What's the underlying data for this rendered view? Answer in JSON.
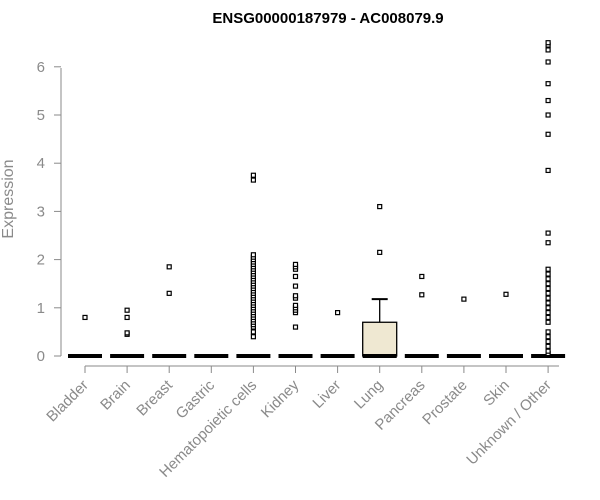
{
  "chart_data": {
    "type": "box",
    "title": "ENSG00000187979 - AC008079.9",
    "xlabel": "",
    "ylabel": "Expression",
    "ylim": [
      0,
      6.6
    ],
    "yticks": [
      0,
      1,
      2,
      3,
      4,
      5,
      6
    ],
    "grid": false,
    "legend": "none",
    "colors": {
      "box_fill": "#efe8d2",
      "median": "#000000",
      "axis": "#8a8a8a",
      "text": "#8a8a8a"
    },
    "categories": [
      "Bladder",
      "Brain",
      "Breast",
      "Gastric",
      "Hematopoietic cells",
      "Kidney",
      "Liver",
      "Lung",
      "Pancreas",
      "Prostate",
      "Skin",
      "Unknown / Other"
    ],
    "boxes": [
      {
        "category": "Bladder",
        "q1": 0,
        "median": 0,
        "q3": 0,
        "whisker_low": 0,
        "whisker_high": 0,
        "outliers": [
          0.8
        ]
      },
      {
        "category": "Brain",
        "q1": 0,
        "median": 0,
        "q3": 0,
        "whisker_low": 0,
        "whisker_high": 0,
        "outliers": [
          0.45,
          0.48,
          0.8,
          0.95
        ]
      },
      {
        "category": "Breast",
        "q1": 0,
        "median": 0,
        "q3": 0,
        "whisker_low": 0,
        "whisker_high": 0,
        "outliers": [
          1.3,
          1.85
        ]
      },
      {
        "category": "Gastric",
        "q1": 0,
        "median": 0,
        "q3": 0,
        "whisker_low": 0,
        "whisker_high": 0,
        "outliers": []
      },
      {
        "category": "Hematopoietic cells",
        "q1": 0,
        "median": 0,
        "q3": 0,
        "whisker_low": 0,
        "whisker_high": 0,
        "outliers": [
          0.4,
          0.5,
          0.6,
          0.65,
          0.7,
          0.75,
          0.8,
          0.85,
          0.9,
          0.95,
          1.0,
          1.05,
          1.1,
          1.15,
          1.2,
          1.25,
          1.3,
          1.35,
          1.4,
          1.45,
          1.5,
          1.55,
          1.6,
          1.65,
          1.7,
          1.75,
          1.8,
          1.85,
          1.9,
          1.95,
          2.0,
          2.05,
          2.1,
          3.65,
          3.75
        ]
      },
      {
        "category": "Kidney",
        "q1": 0,
        "median": 0,
        "q3": 0,
        "whisker_low": 0,
        "whisker_high": 0,
        "outliers": [
          0.6,
          0.9,
          0.95,
          1.0,
          1.05,
          1.2,
          1.25,
          1.45,
          1.65,
          1.8,
          1.85,
          1.9
        ]
      },
      {
        "category": "Liver",
        "q1": 0,
        "median": 0,
        "q3": 0,
        "whisker_low": 0,
        "whisker_high": 0,
        "outliers": [
          0.9
        ]
      },
      {
        "category": "Lung",
        "q1": 0,
        "median": 0,
        "q3": 0.7,
        "whisker_low": 0,
        "whisker_high": 1.18,
        "outliers": [
          2.15,
          3.1
        ]
      },
      {
        "category": "Pancreas",
        "q1": 0,
        "median": 0,
        "q3": 0,
        "whisker_low": 0,
        "whisker_high": 0,
        "outliers": [
          1.27,
          1.65
        ]
      },
      {
        "category": "Prostate",
        "q1": 0,
        "median": 0,
        "q3": 0,
        "whisker_low": 0,
        "whisker_high": 0,
        "outliers": [
          1.18
        ]
      },
      {
        "category": "Skin",
        "q1": 0,
        "median": 0,
        "q3": 0,
        "whisker_low": 0,
        "whisker_high": 0,
        "outliers": [
          1.28
        ]
      },
      {
        "category": "Unknown / Other",
        "q1": 0,
        "median": 0,
        "q3": 0,
        "whisker_low": 0,
        "whisker_high": 0,
        "outliers": [
          0.05,
          0.1,
          0.2,
          0.3,
          0.4,
          0.5,
          0.7,
          0.8,
          0.9,
          1.0,
          1.1,
          1.2,
          1.3,
          1.4,
          1.5,
          1.6,
          1.7,
          1.8,
          2.35,
          2.55,
          3.85,
          4.6,
          5.0,
          5.3,
          5.65,
          6.1,
          6.35,
          6.45,
          6.5
        ]
      }
    ]
  }
}
